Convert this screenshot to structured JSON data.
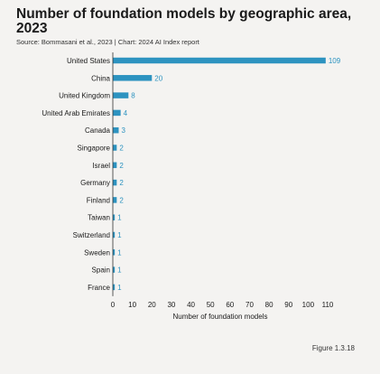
{
  "header": {
    "title": "Number of foundation models by geographic area, 2023",
    "source": "Source: Bommasani et al., 2023 | Chart: 2024 AI Index report"
  },
  "figure_label": "Figure 1.3.18",
  "colors": {
    "bar": "#2d93c0",
    "text": "#1a1a1a",
    "axis": "#333333",
    "background": "#f4f3f1"
  },
  "chart_data": {
    "type": "bar",
    "orientation": "horizontal",
    "categories": [
      "United States",
      "China",
      "United Kingdom",
      "United Arab Emirates",
      "Canada",
      "Singapore",
      "Israel",
      "Germany",
      "Finland",
      "Taiwan",
      "Switzerland",
      "Sweden",
      "Spain",
      "France"
    ],
    "values": [
      109,
      20,
      8,
      4,
      3,
      2,
      2,
      2,
      2,
      1,
      1,
      1,
      1,
      1
    ],
    "xlabel": "Number of foundation models",
    "ylabel": "",
    "xlim": [
      0,
      110
    ],
    "xticks": [
      0,
      10,
      20,
      30,
      40,
      50,
      60,
      70,
      80,
      90,
      100,
      110
    ],
    "grid": false,
    "data_labels": true
  }
}
